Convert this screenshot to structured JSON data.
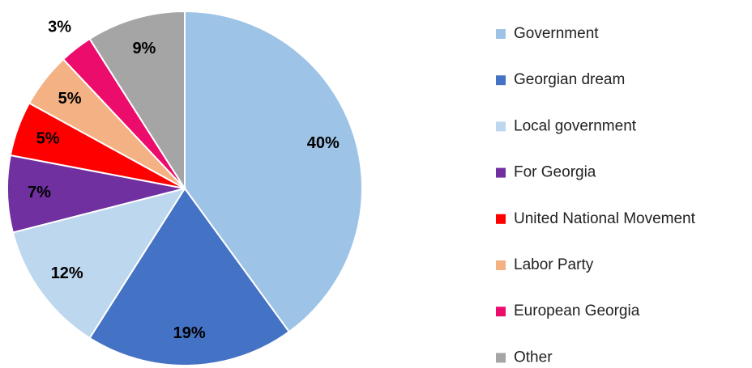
{
  "chart_data": {
    "type": "pie",
    "categories": [
      "Government",
      "Georgian dream",
      "Local government",
      "For Georgia",
      "United National Movement",
      "Labor Party",
      "European Georgia",
      "Other"
    ],
    "values": [
      40,
      19,
      12,
      7,
      5,
      5,
      3,
      9
    ],
    "value_labels": [
      "40%",
      "19%",
      "12%",
      "7%",
      "5%",
      "5%",
      "3%",
      "9%"
    ],
    "colors": [
      "#9dc3e6",
      "#4472c4",
      "#bdd7ee",
      "#7030a0",
      "#ff0000",
      "#f4b183",
      "#ec0c6c",
      "#a5a5a5"
    ],
    "legend": "right"
  }
}
